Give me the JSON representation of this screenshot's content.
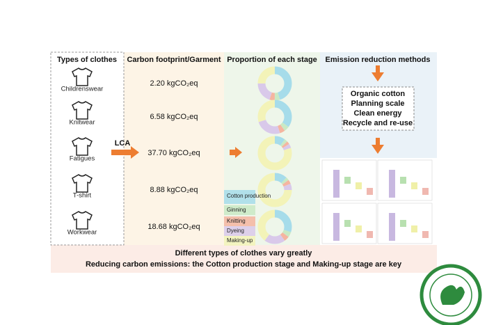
{
  "types": {
    "title": "Types of clothes",
    "items": [
      "Childrenswear",
      "Knitwear",
      "Fatigues",
      "T-shirt",
      "Workwear"
    ]
  },
  "method_label": "LCA",
  "footprint": {
    "title": "Carbon footprint/Garment",
    "values": [
      "2.20 kgCO₂eq",
      "6.58 kgCO₂eq",
      "37.70 kgCO₂eq",
      "8.88 kgCO₂eq",
      "18.68 kgCO₂eq"
    ]
  },
  "proportion": {
    "title": "Proportion of each stage",
    "legend": [
      "Cotton production",
      "Ginning",
      "Knitting",
      "Dyeing",
      "Making-up"
    ]
  },
  "reduction": {
    "title": "Emission reduction methods",
    "items": [
      "Organic cotton",
      "Planning scale",
      "Clean energy",
      "Recycle and re-use"
    ]
  },
  "conclusion": [
    "Different types of clothes vary greatly",
    "Reducing carbon emissions: the Cotton production stage and Making-up stage are key"
  ]
}
